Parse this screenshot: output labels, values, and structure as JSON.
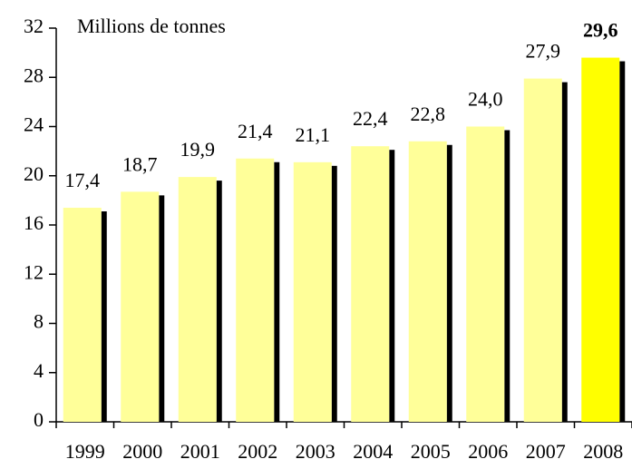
{
  "chart_data": {
    "type": "bar",
    "y_axis_label": "Millions de tonnes",
    "categories": [
      "1999",
      "2000",
      "2001",
      "2002",
      "2003",
      "2004",
      "2005",
      "2006",
      "2007",
      "2008"
    ],
    "values": [
      17.4,
      18.7,
      19.9,
      21.4,
      21.1,
      22.4,
      22.8,
      24.0,
      27.9,
      29.6
    ],
    "value_labels": [
      "17,4",
      "18,7",
      "19,9",
      "21,4",
      "21,1",
      "22,4",
      "22,8",
      "24,0",
      "27,9",
      "29,6"
    ],
    "colors": [
      "#ffff99",
      "#ffff99",
      "#ffff99",
      "#ffff99",
      "#ffff99",
      "#ffff99",
      "#ffff99",
      "#ffff99",
      "#ffff99",
      "#ffff00"
    ],
    "bold_value_labels": [
      false,
      false,
      false,
      false,
      false,
      false,
      false,
      false,
      false,
      true
    ],
    "shadow_color": "#000000",
    "ylim": [
      0,
      32
    ],
    "yticks": [
      0,
      4,
      8,
      12,
      16,
      20,
      24,
      28,
      32
    ],
    "grid": false
  }
}
